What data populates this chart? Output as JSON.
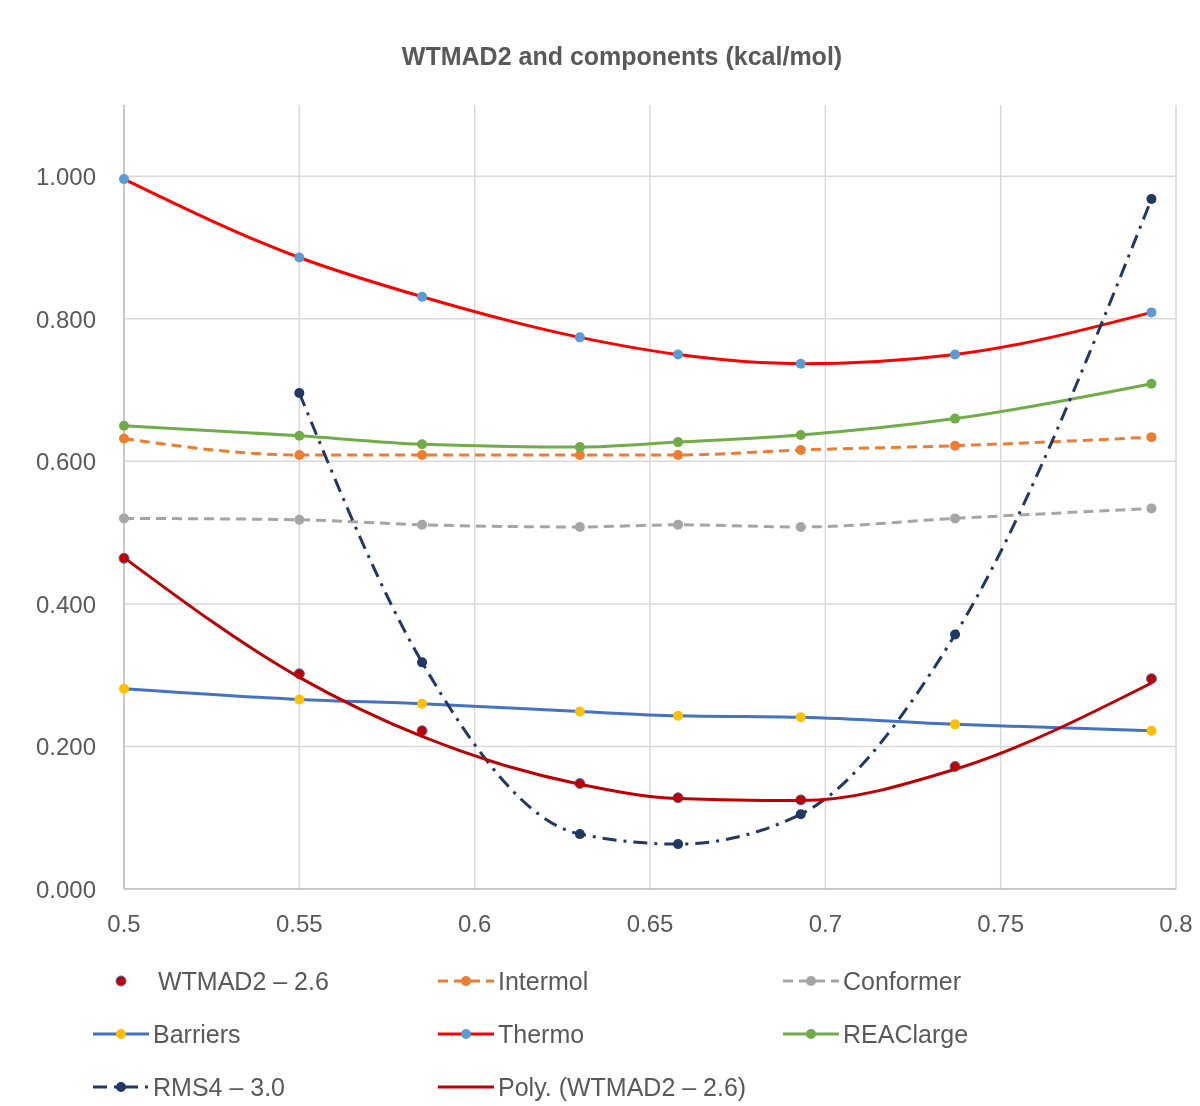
{
  "chart_data": {
    "type": "line",
    "title": "WTMAD2 and components (kcal/mol)",
    "x": [
      0.5,
      0.55,
      0.585,
      0.63,
      0.658,
      0.693,
      0.737,
      0.793
    ],
    "xlim": [
      0.5,
      0.8
    ],
    "xticks": [
      0.5,
      0.55,
      0.6,
      0.65,
      0.7,
      0.75,
      0.8
    ],
    "ylim": [
      0,
      1.1
    ],
    "yticks": [
      {
        "value": 0,
        "label": "0.000"
      },
      {
        "value": 0.2,
        "label": "0.200"
      },
      {
        "value": 0.4,
        "label": "0.400"
      },
      {
        "value": 0.6,
        "label": "0.600"
      },
      {
        "value": 0.8,
        "label": "0.800"
      },
      {
        "value": 1,
        "label": "1.000"
      }
    ],
    "grid": true,
    "legend": "bottom",
    "marker": "circle",
    "series": [
      {
        "name": "WTMAD2 – 2.6",
        "type": "scatter",
        "color": "#c00000",
        "values": [
          0.464,
          0.302,
          0.222,
          0.148,
          0.128,
          0.125,
          0.172,
          0.295
        ]
      },
      {
        "name": "Intermol",
        "color": "#ed7d31",
        "line_style": "dashed",
        "values": [
          0.632,
          0.609,
          0.609,
          0.609,
          0.609,
          0.616,
          0.622,
          0.634
        ]
      },
      {
        "name": "Conformer",
        "color": "#a5a5a5",
        "line_style": "dashed",
        "values": [
          0.52,
          0.518,
          0.511,
          0.508,
          0.511,
          0.508,
          0.52,
          0.534
        ]
      },
      {
        "name": "Barriers",
        "color": "#4472c4",
        "colors": [
          "#ffc000",
          "#ffc000",
          "#ffc000",
          "#ffc000",
          "#ffc000",
          "#ffc000",
          "#ffc000",
          "#ffc000"
        ],
        "line_style": "solid",
        "values": [
          0.281,
          0.266,
          0.26,
          0.249,
          0.243,
          0.241,
          0.231,
          0.222
        ]
      },
      {
        "name": "Thermo",
        "color": "#ff0000",
        "colors": [
          "#5b9bd5",
          "#5b9bd5",
          "#5b9bd5",
          "#5b9bd5",
          "#5b9bd5",
          "#5b9bd5",
          "#5b9bd5",
          "#5b9bd5"
        ],
        "line_style": "solid",
        "values": [
          0.996,
          0.886,
          0.831,
          0.774,
          0.75,
          0.737,
          0.75,
          0.809
        ]
      },
      {
        "name": "REAClarge",
        "color": "#70ad47",
        "line_style": "solid",
        "values": [
          0.65,
          0.636,
          0.624,
          0.62,
          0.627,
          0.637,
          0.66,
          0.709
        ]
      },
      {
        "name": "RMS4 – 3.0",
        "color": "#203864",
        "line_style": "dashdot",
        "values": [
          null,
          0.696,
          0.318,
          0.077,
          0.063,
          0.105,
          0.357,
          0.968
        ]
      },
      {
        "name": "Poly. (WTMAD2 – 2.6)",
        "color": "#c00000",
        "line_style": "solid",
        "marker": "none",
        "values": [
          0.465,
          0.297,
          0.214,
          0.147,
          0.127,
          0.124,
          0.168,
          0.289
        ]
      }
    ]
  }
}
